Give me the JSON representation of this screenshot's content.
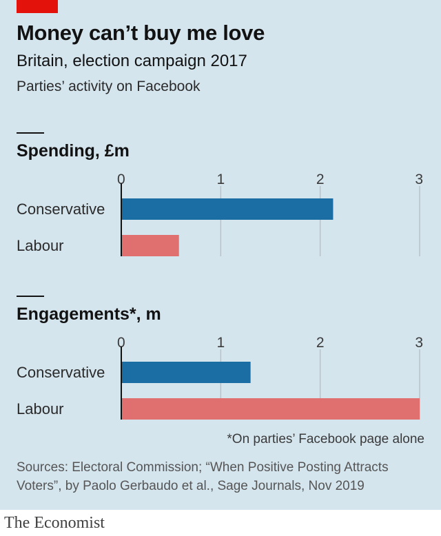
{
  "title": "Money can’t buy me love",
  "subtitle": "Britain, election campaign 2017",
  "description": "Parties’ activity on Facebook",
  "footnote": "*On parties’ Facebook page alone",
  "source": "Sources: Electoral Commission; “When Positive Posting Attracts Voters”, by Paolo Gerbaudo et al., Sage Journals, Nov 2019",
  "brand": "The Economist",
  "colors": {
    "background": "#d5e5ee",
    "accent": "#e3120b",
    "conservative": "#1a6ea3",
    "labour": "#e07070",
    "gridline": "#b7c2c9"
  },
  "chart_data": [
    {
      "type": "bar",
      "orientation": "horizontal",
      "title": "Spending, £m",
      "categories": [
        "Conservative",
        "Labour"
      ],
      "values": [
        2.13,
        0.58
      ],
      "xlim": [
        0,
        3
      ],
      "ticks": [
        0,
        1,
        2,
        3
      ],
      "grid": true
    },
    {
      "type": "bar",
      "orientation": "horizontal",
      "title": "Engagements*, m",
      "categories": [
        "Conservative",
        "Labour"
      ],
      "values": [
        1.3,
        3.0
      ],
      "xlim": [
        0,
        3
      ],
      "ticks": [
        0,
        1,
        2,
        3
      ],
      "grid": true
    }
  ]
}
